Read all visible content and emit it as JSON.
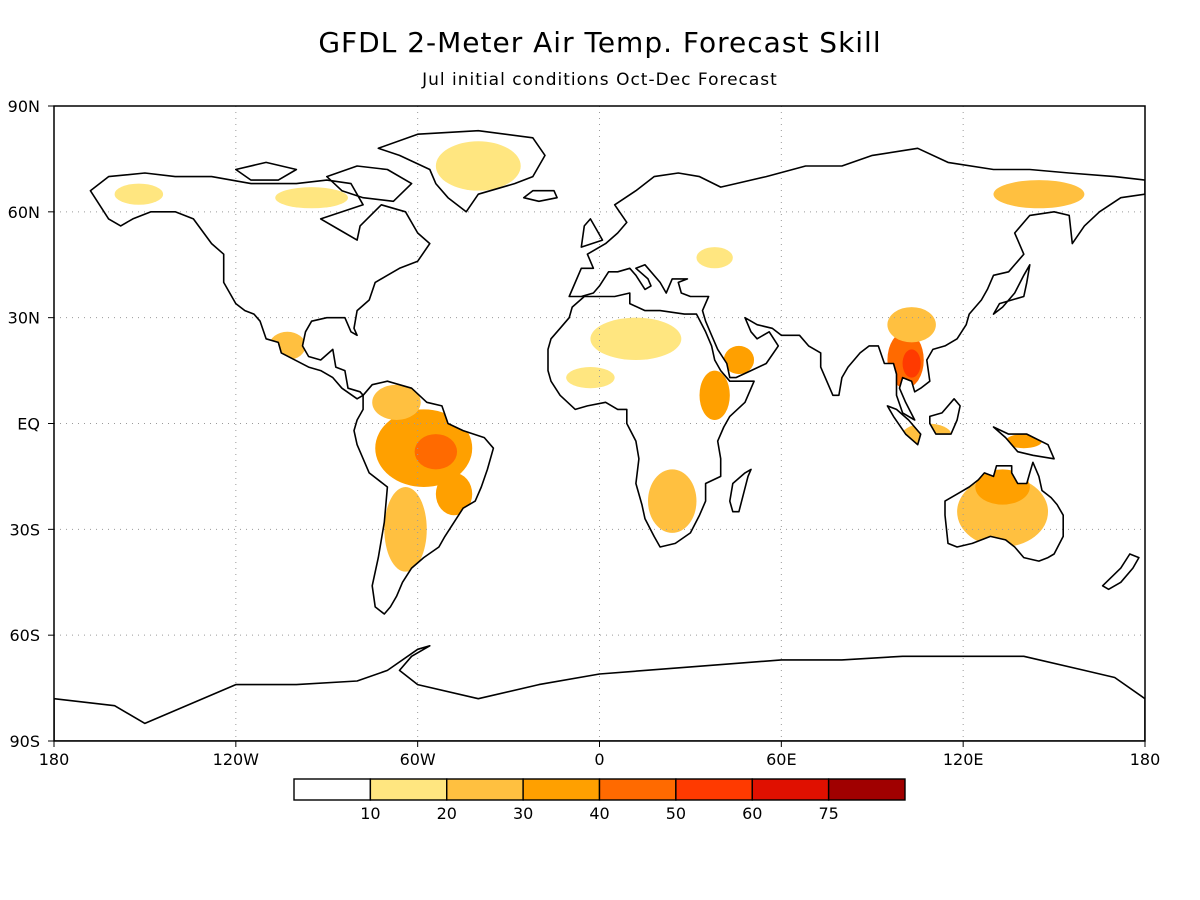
{
  "title": "GFDL 2-Meter Air Temp. Forecast Skill",
  "subtitle": "Jul initial conditions   Oct-Dec Forecast",
  "axes": {
    "lat_labels": [
      "90N",
      "60N",
      "30N",
      "EQ",
      "30S",
      "60S",
      "90S"
    ],
    "lat_values": [
      90,
      60,
      30,
      0,
      -30,
      -60,
      -90
    ],
    "lon_labels": [
      "180",
      "120W",
      "60W",
      "0",
      "60E",
      "120E",
      "180"
    ],
    "lon_values": [
      -180,
      -120,
      -60,
      0,
      60,
      120,
      180
    ]
  },
  "colorbar": {
    "labels": [
      "10",
      "20",
      "30",
      "40",
      "50",
      "60",
      "75"
    ],
    "colors": [
      "#ffffff",
      "#ffe680",
      "#ffc040",
      "#ffa000",
      "#ff6a00",
      "#ff3a00",
      "#e01000",
      "#a00000"
    ]
  },
  "skill_regions": [
    {
      "name": "amazon",
      "lon": -58,
      "lat": -7,
      "rx": 16,
      "ry": 11,
      "level": 3
    },
    {
      "name": "amazon-core",
      "lon": -54,
      "lat": -8,
      "rx": 7,
      "ry": 5,
      "level": 4
    },
    {
      "name": "northern-south-america",
      "lon": -67,
      "lat": 6,
      "rx": 8,
      "ry": 5,
      "level": 2
    },
    {
      "name": "southern-south-america",
      "lon": -64,
      "lat": -30,
      "rx": 7,
      "ry": 12,
      "level": 2
    },
    {
      "name": "southeast-brazil",
      "lon": -48,
      "lat": -20,
      "rx": 6,
      "ry": 6,
      "level": 3
    },
    {
      "name": "southeast-asia",
      "lon": 101,
      "lat": 18,
      "rx": 6,
      "ry": 8,
      "level": 4
    },
    {
      "name": "indochina-core",
      "lon": 103,
      "lat": 17,
      "rx": 3,
      "ry": 4,
      "level": 5
    },
    {
      "name": "south-china",
      "lon": 103,
      "lat": 28,
      "rx": 8,
      "ry": 5,
      "level": 2
    },
    {
      "name": "australia",
      "lon": 133,
      "lat": -25,
      "rx": 15,
      "ry": 10,
      "level": 2
    },
    {
      "name": "australia-north",
      "lon": 133,
      "lat": -18,
      "rx": 9,
      "ry": 5,
      "level": 3
    },
    {
      "name": "southern-africa",
      "lon": 24,
      "lat": -22,
      "rx": 8,
      "ry": 9,
      "level": 2
    },
    {
      "name": "horn-of-africa",
      "lon": 38,
      "lat": 8,
      "rx": 5,
      "ry": 7,
      "level": 3
    },
    {
      "name": "arabia",
      "lon": 46,
      "lat": 18,
      "rx": 5,
      "ry": 4,
      "level": 3
    },
    {
      "name": "sahara",
      "lon": 12,
      "lat": 24,
      "rx": 15,
      "ry": 6,
      "level": 1
    },
    {
      "name": "west-africa",
      "lon": -3,
      "lat": 13,
      "rx": 8,
      "ry": 3,
      "level": 1
    },
    {
      "name": "east-siberia",
      "lon": 145,
      "lat": 65,
      "rx": 15,
      "ry": 4,
      "level": 2
    },
    {
      "name": "greenland",
      "lon": -40,
      "lat": 73,
      "rx": 14,
      "ry": 7,
      "level": 1
    },
    {
      "name": "canada-arctic",
      "lon": -95,
      "lat": 64,
      "rx": 12,
      "ry": 3,
      "level": 1
    },
    {
      "name": "alaska",
      "lon": -152,
      "lat": 65,
      "rx": 8,
      "ry": 3,
      "level": 1
    },
    {
      "name": "mexico",
      "lon": -103,
      "lat": 22,
      "rx": 6,
      "ry": 4,
      "level": 2
    },
    {
      "name": "new-guinea",
      "lon": 140,
      "lat": -5,
      "rx": 6,
      "ry": 2,
      "level": 3
    },
    {
      "name": "indonesia",
      "lon": 108,
      "lat": -3,
      "rx": 8,
      "ry": 3,
      "level": 2
    },
    {
      "name": "black-sea-region",
      "lon": 38,
      "lat": 47,
      "rx": 6,
      "ry": 3,
      "level": 1
    }
  ]
}
